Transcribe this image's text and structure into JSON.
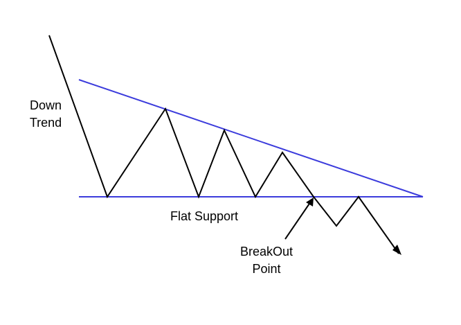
{
  "labels": {
    "down_trend_line1": "Down",
    "down_trend_line2": "Trend",
    "flat_support": "Flat Support",
    "breakout_line1": "BreakOut",
    "breakout_line2": "Point"
  },
  "colors": {
    "trendline": "#3b3bdc",
    "price": "#000000",
    "background": "#ffffff"
  }
}
